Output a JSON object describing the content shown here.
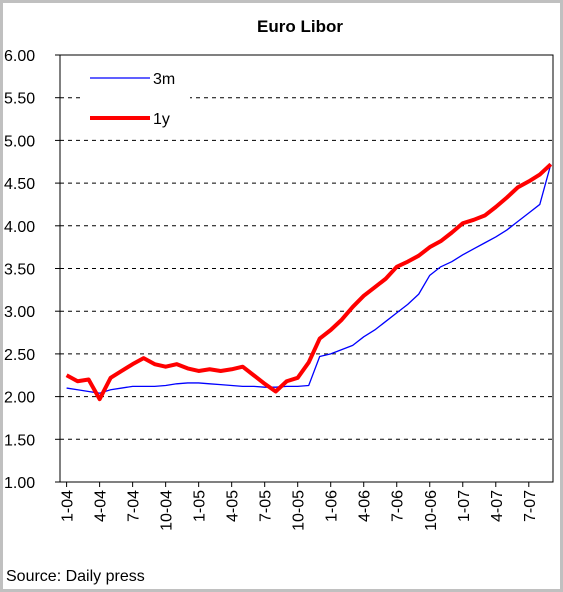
{
  "chart_data": {
    "type": "line",
    "title": "Euro Libor",
    "source": "Source: Daily press",
    "x": [
      0,
      1,
      2,
      3,
      4,
      5,
      6,
      7,
      8,
      9,
      10,
      11,
      12,
      13,
      14,
      15,
      16,
      17,
      18,
      19,
      20,
      21,
      22,
      23,
      24,
      25,
      26,
      27,
      28,
      29,
      30,
      31,
      32,
      33,
      34,
      35,
      36,
      37,
      38,
      39,
      40,
      41,
      42,
      43,
      44
    ],
    "series": [
      {
        "name": "3m",
        "color": "#0000ff",
        "width": 1.3,
        "values": [
          2.1,
          2.08,
          2.06,
          2.04,
          2.08,
          2.1,
          2.12,
          2.12,
          2.12,
          2.13,
          2.15,
          2.16,
          2.16,
          2.15,
          2.14,
          2.13,
          2.12,
          2.12,
          2.11,
          2.11,
          2.12,
          2.12,
          2.13,
          2.47,
          2.5,
          2.55,
          2.6,
          2.7,
          2.78,
          2.88,
          2.98,
          3.08,
          3.2,
          3.42,
          3.52,
          3.58,
          3.66,
          3.73,
          3.8,
          3.87,
          3.95,
          4.05,
          4.15,
          4.25,
          4.72
        ]
      },
      {
        "name": "1y",
        "color": "#ff0000",
        "width": 4,
        "values": [
          2.25,
          2.18,
          2.2,
          1.97,
          2.22,
          2.3,
          2.38,
          2.45,
          2.38,
          2.35,
          2.38,
          2.33,
          2.3,
          2.32,
          2.3,
          2.32,
          2.35,
          2.25,
          2.15,
          2.06,
          2.18,
          2.22,
          2.4,
          2.68,
          2.78,
          2.9,
          3.05,
          3.18,
          3.28,
          3.38,
          3.52,
          3.58,
          3.65,
          3.75,
          3.82,
          3.92,
          4.03,
          4.07,
          4.12,
          4.22,
          4.33,
          4.45,
          4.52,
          4.6,
          4.72
        ]
      }
    ],
    "xlim": [
      -0.6,
      44.2
    ],
    "xticks": [
      {
        "value": 0,
        "label": "1-04"
      },
      {
        "value": 3,
        "label": "4-04"
      },
      {
        "value": 6,
        "label": "7-04"
      },
      {
        "value": 9,
        "label": "10-04"
      },
      {
        "value": 12,
        "label": "1-05"
      },
      {
        "value": 15,
        "label": "4-05"
      },
      {
        "value": 18,
        "label": "7-05"
      },
      {
        "value": 21,
        "label": "10-05"
      },
      {
        "value": 24,
        "label": "1-06"
      },
      {
        "value": 27,
        "label": "4-06"
      },
      {
        "value": 30,
        "label": "7-06"
      },
      {
        "value": 33,
        "label": "10-06"
      },
      {
        "value": 36,
        "label": "1-07"
      },
      {
        "value": 39,
        "label": "4-07"
      },
      {
        "value": 42,
        "label": "7-07"
      }
    ],
    "ylim": [
      1,
      6
    ],
    "yticks": [
      {
        "value": 1,
        "label": "1.00"
      },
      {
        "value": 1.5,
        "label": "1.50"
      },
      {
        "value": 2,
        "label": "2.00"
      },
      {
        "value": 2.5,
        "label": "2.50"
      },
      {
        "value": 3,
        "label": "3.00"
      },
      {
        "value": 3.5,
        "label": "3.50"
      },
      {
        "value": 4,
        "label": "4.00"
      },
      {
        "value": 4.5,
        "label": "4.50"
      },
      {
        "value": 5,
        "label": "5.00"
      },
      {
        "value": 5.5,
        "label": "5.50"
      },
      {
        "value": 6,
        "label": "6.00"
      }
    ],
    "grid": true,
    "legend": "top-left"
  }
}
